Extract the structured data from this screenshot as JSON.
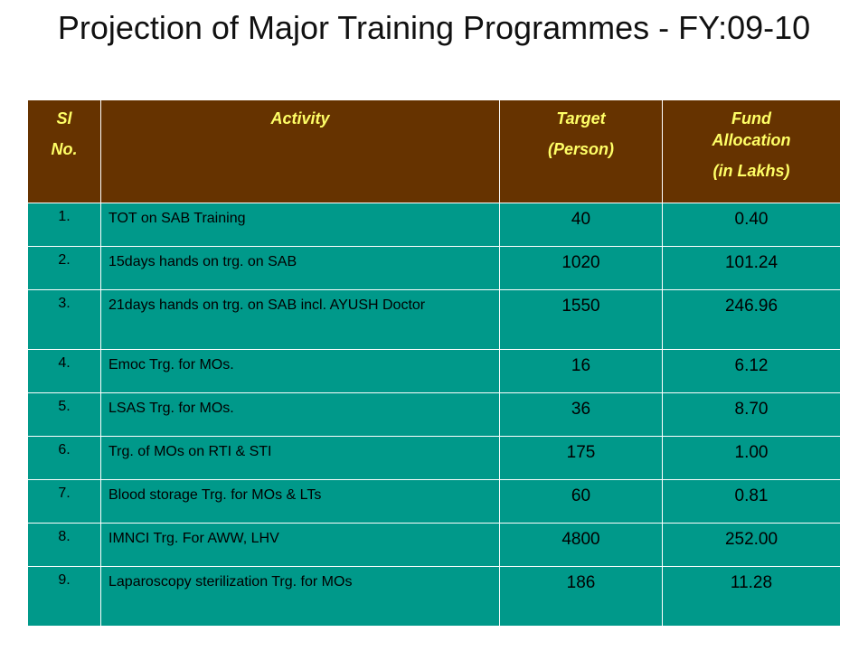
{
  "slide": {
    "title": "Projection of Major Training Programmes - FY:09-10"
  },
  "table": {
    "headers": {
      "sl": [
        "Sl",
        "No."
      ],
      "activity": [
        "Activity"
      ],
      "target": [
        "Target",
        "(Person)"
      ],
      "fund": [
        "Fund Allocation",
        "(in Lakhs)"
      ]
    },
    "rows": [
      {
        "sl": "1.",
        "activity": "TOT on SAB Training",
        "target": "40",
        "fund": "0.40"
      },
      {
        "sl": "2.",
        "activity": "15days hands on trg. on SAB",
        "target": "1020",
        "fund": "101.24"
      },
      {
        "sl": "3.",
        "activity": "21days hands on trg. on SAB incl. AYUSH Doctor",
        "target": "1550",
        "fund": "246.96"
      },
      {
        "sl": "4.",
        "activity": "Emoc Trg. for MOs.",
        "target": "16",
        "fund": "6.12"
      },
      {
        "sl": "5.",
        "activity": "LSAS Trg. for MOs.",
        "target": "36",
        "fund": "8.70"
      },
      {
        "sl": "6.",
        "activity": "Trg. of MOs on RTI & STI",
        "target": "175",
        "fund": "1.00"
      },
      {
        "sl": "7.",
        "activity": "Blood storage Trg. for MOs & LTs",
        "target": "60",
        "fund": "0.81"
      },
      {
        "sl": "8.",
        "activity": "IMNCI Trg. For AWW, LHV",
        "target": "4800",
        "fund": "252.00"
      },
      {
        "sl": "9.",
        "activity": "Laparoscopy sterilization Trg. for MOs",
        "target": "186",
        "fund": "11.28"
      }
    ]
  },
  "colors": {
    "header_bg": "#663300",
    "header_text": "#ffff66",
    "row_bg": "#00998a"
  }
}
